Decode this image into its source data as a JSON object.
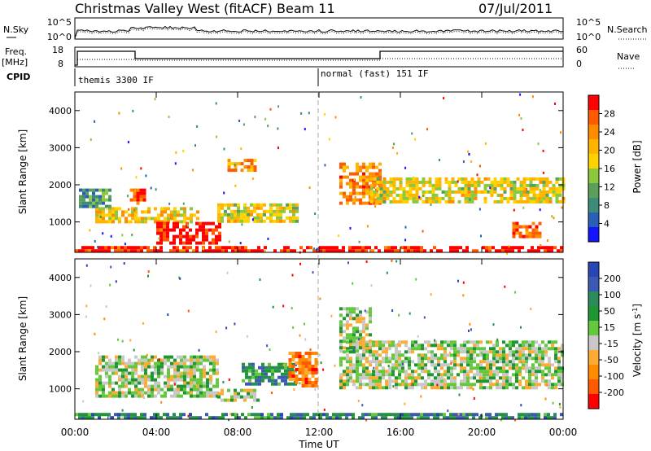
{
  "title": "Christmas Valley West (fitACF)",
  "beam": "Beam 11",
  "date": "07/Jul/2011",
  "colors": {
    "frame": "#000000",
    "dashed": "#aaaaaa"
  },
  "top_panels": {
    "sky_label": "N.Sky",
    "sky_ticks": [
      "10^5",
      "10^0"
    ],
    "search_label": "N.Search",
    "search_ticks": [
      "10^5",
      "10^0"
    ],
    "freq_label": "Freq.",
    "freq_unit": "[MHz]",
    "freq_ticks": [
      "18",
      "8"
    ],
    "nave_label": "Nave",
    "nave_ticks": [
      "60",
      "0"
    ],
    "cpid_label": "CPID",
    "cpid_segments": [
      "themis 3300 IF",
      "normal (fast) 151 IF"
    ]
  },
  "chart_data": [
    {
      "type": "heatmap",
      "name": "power",
      "ylabel": "Slant Range [km]",
      "xlabel": "Time UT",
      "xlim": [
        0,
        24
      ],
      "ylim": [
        180,
        4500
      ],
      "xtick_labels": [
        "00:00",
        "04:00",
        "08:00",
        "12:00",
        "16:00",
        "20:00",
        "00:00"
      ],
      "ytick_labels": [
        "1000",
        "2000",
        "3000",
        "4000"
      ],
      "colorbar": {
        "label": "Power [dB]",
        "tick_labels": [
          "4",
          "8",
          "12",
          "16",
          "20",
          "24",
          "28"
        ],
        "range": [
          0,
          30
        ],
        "colors": [
          "#1414ff",
          "#2a5fb8",
          "#3c8c78",
          "#5aa05a",
          "#8cc83c",
          "#ffd200",
          "#ffb400",
          "#ff8c00",
          "#ff5a00",
          "#ff0000"
        ]
      },
      "echo_regions": [
        {
          "t0": 0.0,
          "t1": 24.0,
          "r0": 180,
          "r1": 350,
          "level": 0.95
        },
        {
          "t0": 2.7,
          "t1": 3.5,
          "r0": 1500,
          "r1": 1900,
          "level": 0.9
        },
        {
          "t0": 1.0,
          "t1": 6.0,
          "r0": 1000,
          "r1": 1400,
          "level": 0.6
        },
        {
          "t0": 4.0,
          "t1": 7.2,
          "r0": 400,
          "r1": 1000,
          "level": 0.97
        },
        {
          "t0": 7.0,
          "t1": 11.0,
          "r0": 1000,
          "r1": 1500,
          "level": 0.55
        },
        {
          "t0": 7.5,
          "t1": 8.8,
          "r0": 2400,
          "r1": 2700,
          "level": 0.7
        },
        {
          "t0": 13.0,
          "t1": 15.0,
          "r0": 1500,
          "r1": 2600,
          "level": 0.75
        },
        {
          "t0": 14.5,
          "t1": 24.0,
          "r0": 1500,
          "r1": 2200,
          "level": 0.55
        },
        {
          "t0": 21.5,
          "t1": 22.8,
          "r0": 600,
          "r1": 1000,
          "level": 0.85
        },
        {
          "t0": 0.2,
          "t1": 1.8,
          "r0": 1400,
          "r1": 1900,
          "level": 0.3
        }
      ]
    },
    {
      "type": "heatmap",
      "name": "velocity",
      "ylabel": "Slant Range [km]",
      "xlabel": "Time UT",
      "xlim": [
        0,
        24
      ],
      "ylim": [
        180,
        4500
      ],
      "xtick_labels": [
        "00:00",
        "04:00",
        "08:00",
        "12:00",
        "16:00",
        "20:00",
        "00:00"
      ],
      "ytick_labels": [
        "1000",
        "2000",
        "3000",
        "4000"
      ],
      "colorbar": {
        "label": "Velocity [m s^-1]",
        "tick_labels": [
          "200",
          "100",
          "50",
          "15",
          "-15",
          "-50",
          "-100",
          "-200"
        ],
        "colors": [
          "#2846b4",
          "#3c5ab4",
          "#2a8c5a",
          "#1e9632",
          "#64c83c",
          "#c8c8c8",
          "#ffaa32",
          "#ff8c00",
          "#ff5a00",
          "#ff0000"
        ]
      },
      "echo_regions": [
        {
          "t0": 0.0,
          "t1": 24.0,
          "r0": 180,
          "r1": 350,
          "level": 0.25
        },
        {
          "t0": 1.0,
          "t1": 7.0,
          "r0": 800,
          "r1": 1900,
          "level": 0.5
        },
        {
          "t0": 7.0,
          "t1": 9.0,
          "r0": 700,
          "r1": 1000,
          "level": 0.5
        },
        {
          "t0": 8.2,
          "t1": 10.8,
          "r0": 1100,
          "r1": 1700,
          "level": 0.28
        },
        {
          "t0": 10.5,
          "t1": 11.8,
          "r0": 1100,
          "r1": 2000,
          "level": 0.78
        },
        {
          "t0": 13.0,
          "t1": 24.0,
          "r0": 1000,
          "r1": 2300,
          "level": 0.5
        },
        {
          "t0": 13.0,
          "t1": 14.5,
          "r0": 2000,
          "r1": 3200,
          "level": 0.5
        }
      ]
    }
  ]
}
